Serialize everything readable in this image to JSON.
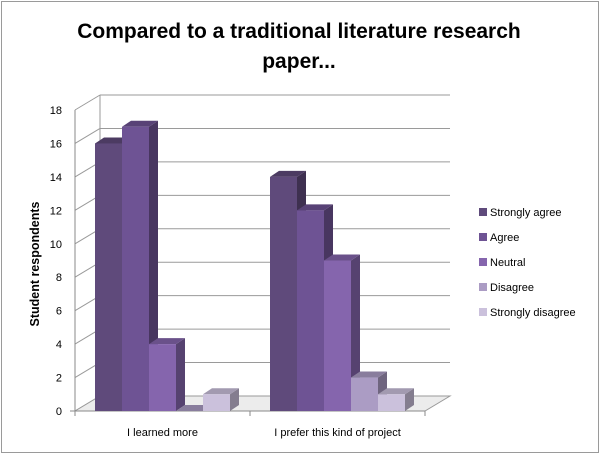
{
  "chart_data": {
    "type": "bar",
    "title_lines": [
      "Compared to a traditional literature research",
      "paper..."
    ],
    "xlabel": "",
    "ylabel": "Student respondents",
    "ylim": [
      0,
      18
    ],
    "yticks": [
      0,
      2,
      4,
      6,
      8,
      10,
      12,
      14,
      16,
      18
    ],
    "grid": true,
    "legend_position": "right",
    "categories": [
      "I learned more",
      "I prefer this kind of project"
    ],
    "series": [
      {
        "name": "Strongly agree",
        "values": [
          16,
          14
        ],
        "color": "#5f4a7b"
      },
      {
        "name": "Agree",
        "values": [
          17,
          12
        ],
        "color": "#6e5394"
      },
      {
        "name": "Neutral",
        "values": [
          4,
          9
        ],
        "color": "#8565ad"
      },
      {
        "name": "Disagree",
        "values": [
          0,
          2
        ],
        "color": "#ab9cc4"
      },
      {
        "name": "Strongly disagree",
        "values": [
          1,
          1
        ],
        "color": "#cbc1dc"
      }
    ]
  }
}
